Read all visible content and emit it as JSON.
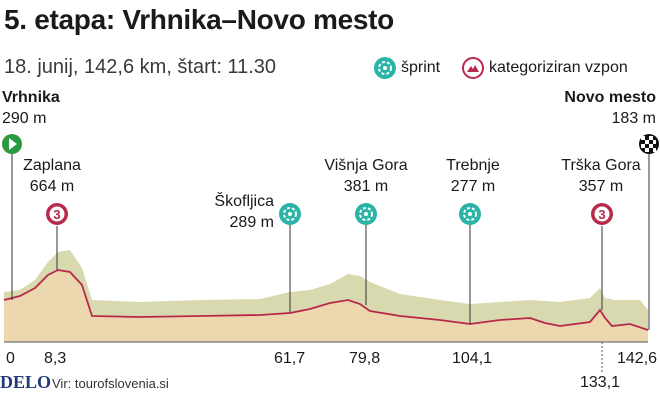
{
  "header": {
    "title": "5. etapa: Vrhnika–Novo mesto",
    "subtitle": "18. junij, 142,6 km, štart: 11.30"
  },
  "legend": {
    "sprint_label": "šprint",
    "climb_label": "kategoriziran vzpon",
    "sprint_icon": "sprint-icon",
    "climb_icon": "mountain-climb-icon"
  },
  "start": {
    "name": "Vrhnika",
    "altitude": "290 m",
    "km": "0",
    "icon": "start-play-icon"
  },
  "finish": {
    "name": "Novo mesto",
    "altitude": "183 m",
    "km": "142,6",
    "icon": "checkered-flag-icon"
  },
  "points": [
    {
      "name": "Zaplana",
      "altitude": "664 m",
      "km": "8,3",
      "type": "climb",
      "category": "3"
    },
    {
      "name": "Škofljica",
      "altitude": "289 m",
      "km": "61,7",
      "type": "sprint"
    },
    {
      "name": "Višnja Gora",
      "altitude": "381 m",
      "km": "79,8",
      "type": "sprint"
    },
    {
      "name": "Trebnje",
      "altitude": "277 m",
      "km": "104,1",
      "type": "sprint"
    },
    {
      "name": "Trška Gora",
      "altitude": "357 m",
      "km": "133,1",
      "type": "climb",
      "category": "3"
    }
  ],
  "footer": {
    "logo": "DELO",
    "source": "Vir: tourofslovenia.si"
  },
  "colors": {
    "profile_fill": "#ecd7ae",
    "profile_back": "#d9d9b0",
    "profile_line": "#b8294a",
    "sprint": "#2ab3a6",
    "climb": "#b8294a",
    "start": "#2a9a3e"
  }
}
